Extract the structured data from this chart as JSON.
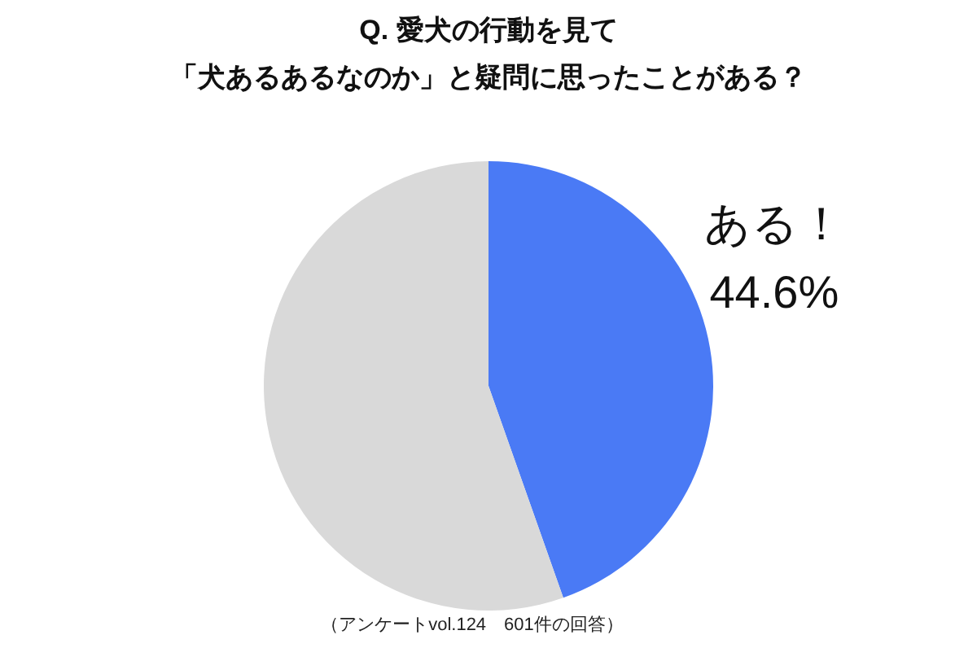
{
  "chart_data": {
    "type": "pie",
    "title": "Q.  愛犬の行動を見て",
    "subtitle": "「犬あるあるなのか」と疑問に思ったことがある？",
    "categories": [
      "ある！",
      null
    ],
    "values": [
      44.6,
      55.4
    ],
    "value_labels": [
      "44.6%",
      null
    ],
    "colors": [
      "#4a7af5",
      "#d9d9d9"
    ],
    "annotations": [
      "（アンケートvol.124　601件の回答）"
    ]
  }
}
